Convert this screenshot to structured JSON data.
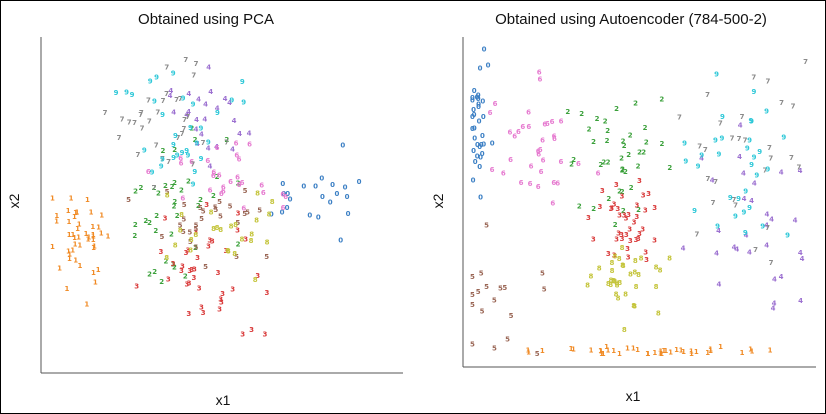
{
  "chart_data": [
    {
      "type": "scatter",
      "title": "Obtained using PCA",
      "xlabel": "x1",
      "ylabel": "x2",
      "grid": false,
      "xlim": [
        0,
        100
      ],
      "ylim": [
        0,
        100
      ],
      "palette": {
        "0": "#3b7fc4",
        "1": "#f08a24",
        "2": "#3aa03a",
        "3": "#d93a3a",
        "4": "#9b6fd0",
        "5": "#9a6655",
        "6": "#e67bd0",
        "7": "#8a8a8a",
        "8": "#c4c43a",
        "9": "#2ec8d8"
      },
      "clusters": [
        {
          "label": "0",
          "n": 22,
          "cx": 78,
          "cy": 50,
          "sx": 12,
          "sy": 8
        },
        {
          "label": "1",
          "n": 45,
          "cx": 9,
          "cy": 38,
          "sx": 5,
          "sy": 10
        },
        {
          "label": "2",
          "n": 38,
          "cx": 36,
          "cy": 48,
          "sx": 10,
          "sy": 15
        },
        {
          "label": "3",
          "n": 40,
          "cx": 48,
          "cy": 30,
          "sx": 10,
          "sy": 13
        },
        {
          "label": "4",
          "n": 25,
          "cx": 46,
          "cy": 78,
          "sx": 8,
          "sy": 10
        },
        {
          "label": "5",
          "n": 28,
          "cx": 44,
          "cy": 45,
          "sx": 12,
          "sy": 8
        },
        {
          "label": "6",
          "n": 28,
          "cx": 52,
          "cy": 58,
          "sx": 12,
          "sy": 10
        },
        {
          "label": "7",
          "n": 32,
          "cx": 36,
          "cy": 72,
          "sx": 10,
          "sy": 12
        },
        {
          "label": "8",
          "n": 26,
          "cx": 50,
          "cy": 40,
          "sx": 12,
          "sy": 8
        },
        {
          "label": "9",
          "n": 32,
          "cx": 38,
          "cy": 76,
          "sx": 10,
          "sy": 12
        }
      ]
    },
    {
      "type": "scatter",
      "title": "Obtained using Autoencoder (784-500-2)",
      "xlabel": "x1",
      "ylabel": "x2",
      "grid": false,
      "xlim": [
        0,
        100
      ],
      "ylim": [
        0,
        100
      ],
      "palette": {
        "0": "#3b7fc4",
        "1": "#f08a24",
        "2": "#3aa03a",
        "3": "#d93a3a",
        "4": "#9b6fd0",
        "5": "#9a6655",
        "6": "#e67bd0",
        "7": "#8a8a8a",
        "8": "#c4c43a",
        "9": "#2ec8d8"
      },
      "clusters": [
        {
          "label": "0",
          "n": 34,
          "cx": 3,
          "cy": 80,
          "sx": 2,
          "sy": 15
        },
        {
          "label": "1",
          "n": 40,
          "cx": 55,
          "cy": 2,
          "sx": 25,
          "sy": 1
        },
        {
          "label": "2",
          "n": 40,
          "cx": 42,
          "cy": 62,
          "sx": 8,
          "sy": 12
        },
        {
          "label": "3",
          "n": 40,
          "cx": 45,
          "cy": 42,
          "sx": 6,
          "sy": 10
        },
        {
          "label": "4",
          "n": 30,
          "cx": 85,
          "cy": 40,
          "sx": 10,
          "sy": 18
        },
        {
          "label": "5",
          "n": 18,
          "cx": 10,
          "cy": 20,
          "sx": 10,
          "sy": 12
        },
        {
          "label": "6",
          "n": 35,
          "cx": 20,
          "cy": 68,
          "sx": 8,
          "sy": 14
        },
        {
          "label": "7",
          "n": 28,
          "cx": 82,
          "cy": 65,
          "sx": 12,
          "sy": 18
        },
        {
          "label": "8",
          "n": 35,
          "cx": 45,
          "cy": 25,
          "sx": 6,
          "sy": 8
        },
        {
          "label": "9",
          "n": 32,
          "cx": 78,
          "cy": 60,
          "sx": 10,
          "sy": 15
        }
      ]
    }
  ]
}
